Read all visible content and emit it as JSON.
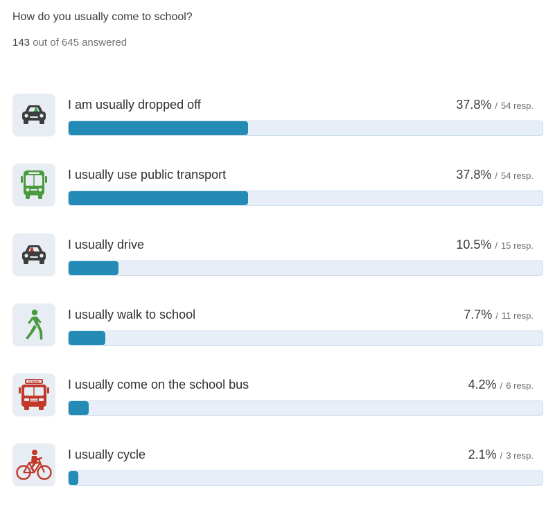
{
  "question": "How do you usually come to school?",
  "answered": {
    "count": "143",
    "rest": "out of 645 answered"
  },
  "chart_data": {
    "type": "bar",
    "orientation": "horizontal",
    "categories": [
      "I am usually dropped off",
      "I usually use public transport",
      "I usually drive",
      "I usually walk to school",
      "I usually come on the school bus",
      "I usually cycle"
    ],
    "values": [
      37.8,
      37.8,
      10.5,
      7.7,
      4.2,
      2.1
    ],
    "responses": [
      54,
      54,
      15,
      11,
      6,
      3
    ],
    "xlim": [
      0,
      100
    ]
  },
  "rows": [
    {
      "icon": "car-passenger-icon",
      "icon_color": "#3d3d3d",
      "accent": "#3fa34d",
      "label": "I am usually dropped off",
      "percent": "37.8%",
      "slash": "/",
      "resp": "54 resp.",
      "fill": 37.8
    },
    {
      "icon": "bus-icon",
      "icon_color": "#4a9a3f",
      "label": "I usually use public transport",
      "percent": "37.8%",
      "slash": "/",
      "resp": "54 resp.",
      "fill": 37.8
    },
    {
      "icon": "car-driver-icon",
      "icon_color": "#3d3d3d",
      "accent": "#c0392b",
      "label": "I usually drive",
      "percent": "10.5%",
      "slash": "/",
      "resp": "15 resp.",
      "fill": 10.5
    },
    {
      "icon": "walking-person-icon",
      "icon_color": "#4a9a3f",
      "label": "I usually walk to school",
      "percent": "7.7%",
      "slash": "/",
      "resp": "11 resp.",
      "fill": 7.7
    },
    {
      "icon": "school-bus-icon",
      "icon_color": "#c0392b",
      "label": "I usually come on the school bus",
      "percent": "4.2%",
      "slash": "/",
      "resp": "6 resp.",
      "fill": 4.2
    },
    {
      "icon": "bicycle-icon",
      "icon_color": "#c0392b",
      "label": "I usually cycle",
      "percent": "2.1%",
      "slash": "/",
      "resp": "3 resp.",
      "fill": 2.1
    }
  ],
  "school_bus_sign": "SCHOOL",
  "colors": {
    "bar_fill": "#238bb5",
    "bar_track": "#e7eef7",
    "icon_bg": "#e8edf3"
  }
}
